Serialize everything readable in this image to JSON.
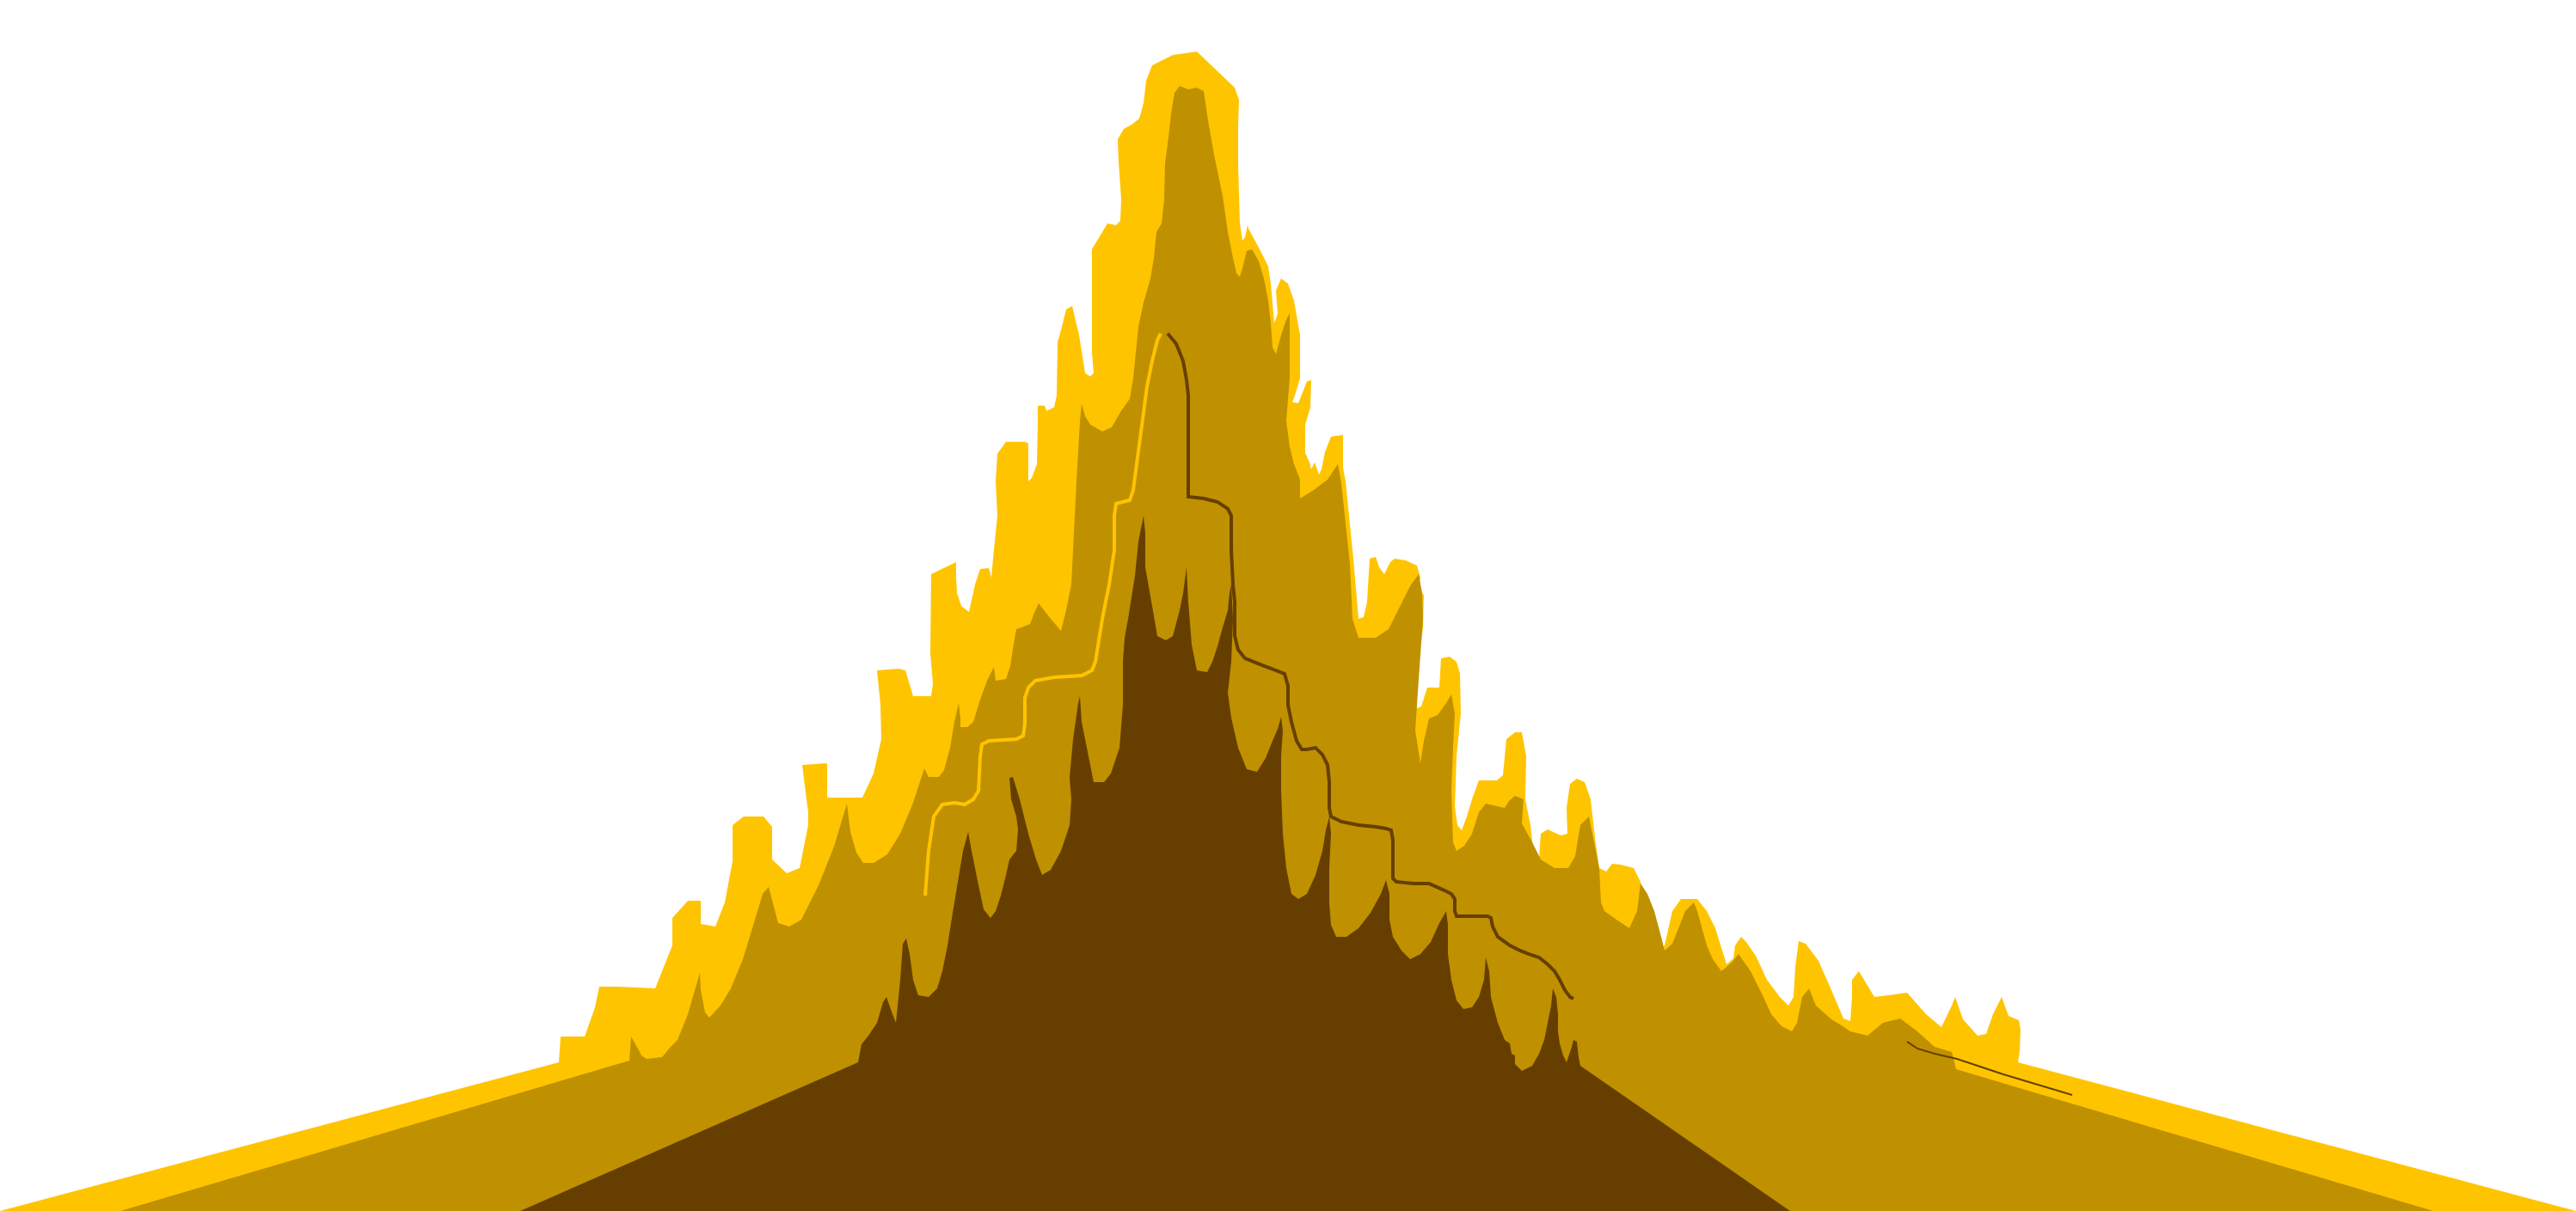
{
  "scene": {
    "subject": "stylized-mountain-illustration",
    "background_color": "#ffffff",
    "layers": [
      {
        "name": "outer-mountain-layer",
        "color": "#FFC400"
      },
      {
        "name": "middle-mountain-layer",
        "color": "#BF9100"
      },
      {
        "name": "inner-mountain-layer",
        "color": "#663F00"
      }
    ],
    "stroke_colors": {
      "outer-ridge-stroke": "#FFC400",
      "inner-ridge-stroke": "#663F00",
      "small-accent-stroke": "#663F00"
    }
  }
}
